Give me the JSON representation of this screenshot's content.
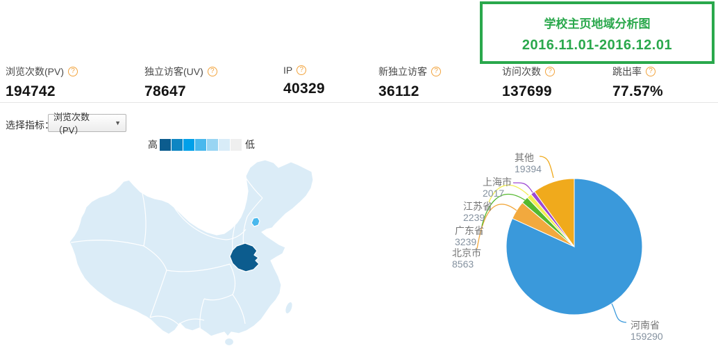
{
  "title_box": {
    "title": "学校主页地域分析图",
    "date_range": "2016.11.01-2016.12.01",
    "accent_color": "#2aa84c"
  },
  "stats": [
    {
      "label": "浏览次数(PV)",
      "value": "194742"
    },
    {
      "label": "独立访客(UV)",
      "value": "78647"
    },
    {
      "label": "IP",
      "value": "40329"
    },
    {
      "label": "新独立访客",
      "value": "36112"
    },
    {
      "label": "访问次数",
      "value": "137699"
    },
    {
      "label": "跳出率",
      "value": "77.57%"
    }
  ],
  "help_icon": "?",
  "metric_selector": {
    "label": "选择指标：",
    "selected": "浏览次数（PV）",
    "caret_icon": "▼"
  },
  "chart_data": [
    {
      "type": "heatmap",
      "subtype": "china-province-choropleth",
      "metric": "浏览次数（PV）",
      "legend": {
        "high_label": "高",
        "low_label": "低",
        "colors": [
          "#0c5c8e",
          "#0f86c3",
          "#00a0e9",
          "#49b8ed",
          "#98d5f3",
          "#d8ecf8",
          "#efefef"
        ]
      },
      "base_fill": "#dbecf7",
      "border_color": "#ffffff",
      "regions": [
        {
          "name": "河南省",
          "level": "highest",
          "color": "#0c5c8e"
        },
        {
          "name": "北京市",
          "level": "medium",
          "color": "#49b8ed"
        },
        {
          "name": "其余省份",
          "level": "low",
          "color": "#dbecf7"
        }
      ]
    },
    {
      "type": "pie",
      "total": 194742,
      "start_angle": "top",
      "direction": "clockwise",
      "items": [
        {
          "name": "河南省",
          "value": 159290,
          "color": "#3a99db"
        },
        {
          "name": "北京市",
          "value": 8563,
          "color": "#f2a93e"
        },
        {
          "name": "广东省",
          "value": 3239,
          "color": "#55b92e"
        },
        {
          "name": "江苏省",
          "value": 2239,
          "color": "#f3ee53"
        },
        {
          "name": "上海市",
          "value": 2017,
          "color": "#9d49d4"
        },
        {
          "name": "其他",
          "value": 19394,
          "color": "#f0aa1c"
        }
      ]
    }
  ]
}
